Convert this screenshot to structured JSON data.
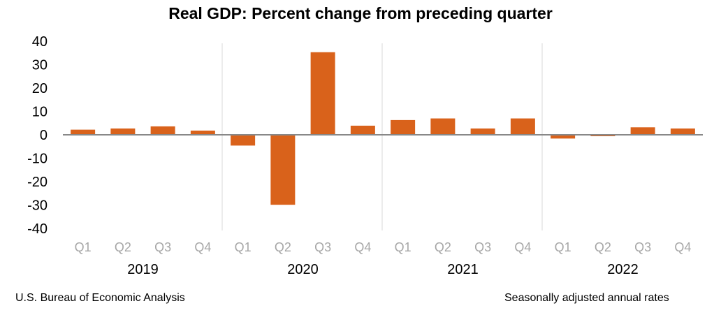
{
  "chart_data": {
    "type": "bar",
    "title": "Real GDP:  Percent change from preceding quarter",
    "categories": [
      "Q1",
      "Q2",
      "Q3",
      "Q4",
      "Q1",
      "Q2",
      "Q3",
      "Q4",
      "Q1",
      "Q2",
      "Q3",
      "Q4",
      "Q1",
      "Q2",
      "Q3",
      "Q4"
    ],
    "groups": [
      "2019",
      "2020",
      "2021",
      "2022"
    ],
    "values": [
      2.2,
      2.7,
      3.6,
      1.8,
      -4.6,
      -29.9,
      35.3,
      3.9,
      6.3,
      7.0,
      2.7,
      7.0,
      -1.6,
      -0.6,
      3.2,
      2.7
    ],
    "ylim": [
      -40,
      40
    ],
    "yticks": [
      40,
      30,
      20,
      10,
      0,
      -10,
      -20,
      -30,
      -40
    ],
    "bar_color": "#d9621b",
    "grid": false
  },
  "footer": {
    "source": "U.S. Bureau of Economic Analysis",
    "note": "Seasonally adjusted annual rates"
  }
}
